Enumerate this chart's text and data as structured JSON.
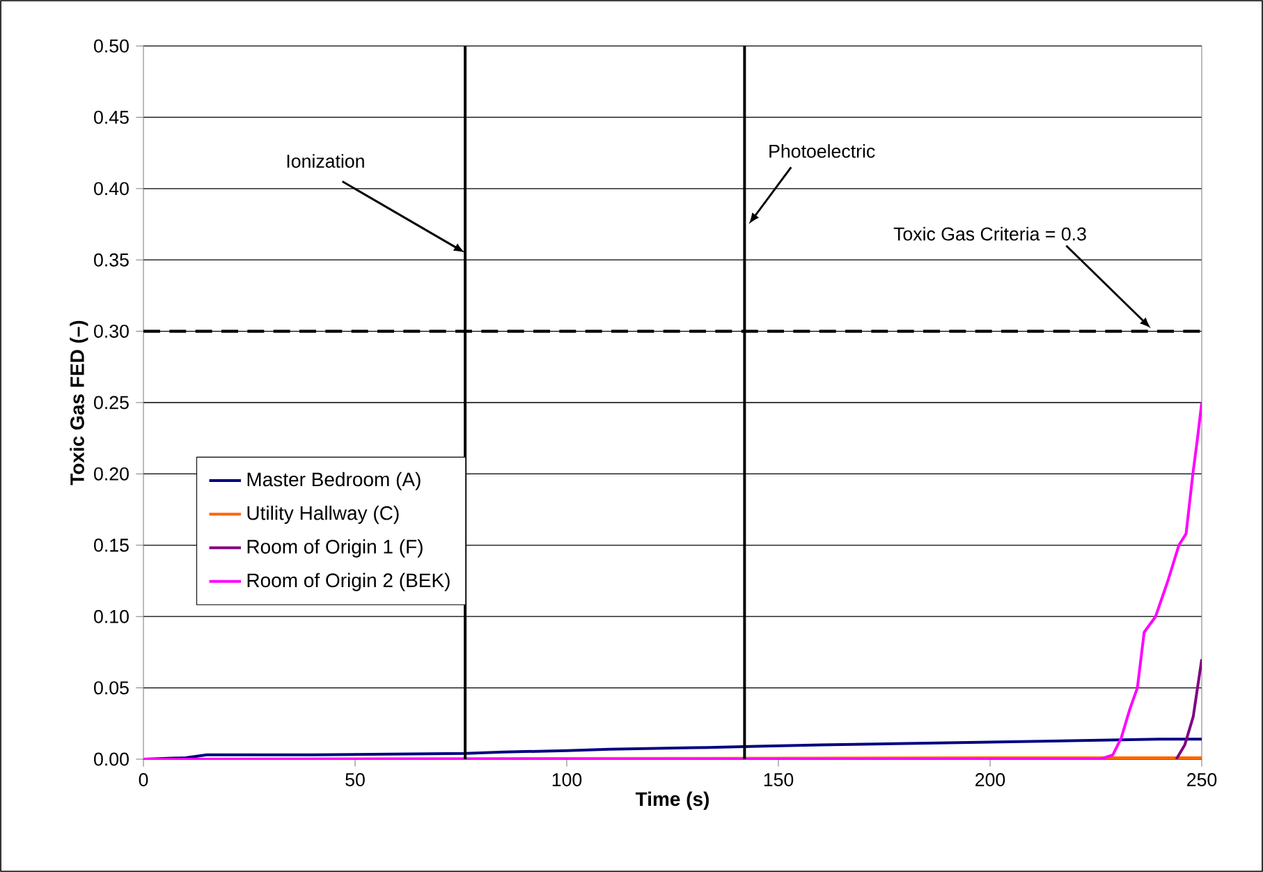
{
  "chart_data": {
    "type": "line",
    "xlabel": "Time (s)",
    "ylabel": "Toxic Gas FED (–)",
    "xlim": [
      0,
      250
    ],
    "xticks": [
      0,
      50,
      100,
      150,
      200,
      250
    ],
    "ylim": [
      0,
      0.5
    ],
    "yticks": [
      {
        "value": 0,
        "label": "0.00"
      },
      {
        "value": 0.05,
        "label": "0.05"
      },
      {
        "value": 0.1,
        "label": "0.10"
      },
      {
        "value": 0.15,
        "label": "0.15"
      },
      {
        "value": 0.2,
        "label": "0.20"
      },
      {
        "value": 0.25,
        "label": "0.25"
      },
      {
        "value": 0.3,
        "label": "0.30"
      },
      {
        "value": 0.35,
        "label": "0.35"
      },
      {
        "value": 0.4,
        "label": "0.40"
      },
      {
        "value": 0.45,
        "label": "0.45"
      },
      {
        "value": 0.5,
        "label": "0.50"
      }
    ],
    "grid": "y",
    "legend": "left",
    "marker": "none",
    "line_style": "solid",
    "series": [
      {
        "name": "Master Bedroom (A)",
        "color": "#000080",
        "x": [
          0,
          10,
          15,
          40,
          76,
          85,
          100,
          110,
          130,
          145,
          160,
          180,
          200,
          220,
          240,
          250
        ],
        "values": [
          0,
          0.001,
          0.003,
          0.003,
          0.004,
          0.005,
          0.006,
          0.007,
          0.008,
          0.009,
          0.01,
          0.011,
          0.012,
          0.013,
          0.014,
          0.014
        ]
      },
      {
        "name": "Utility Hallway (C)",
        "color": "#ff6600",
        "x": [
          0,
          200,
          220,
          250
        ],
        "values": [
          0,
          0.001,
          0.001,
          0.001
        ]
      },
      {
        "name": "Room of Origin 1 (F)",
        "color": "#800080",
        "x": [
          244,
          246,
          248,
          250
        ],
        "values": [
          0,
          0.01,
          0.03,
          0.07
        ]
      },
      {
        "name": "Room of Origin 2 (BEK)",
        "color": "#ff00ff",
        "x": [
          0,
          226,
          229,
          231,
          233,
          234.8,
          236.4,
          239.1,
          242,
          244.6,
          246.3,
          247.9,
          249,
          250
        ],
        "values": [
          0,
          0,
          0.003,
          0.015,
          0.035,
          0.05,
          0.089,
          0.1,
          0.125,
          0.15,
          0.158,
          0.2,
          0.225,
          0.25
        ]
      }
    ],
    "ref_lines": [
      {
        "axis": "x",
        "value": 76,
        "label": "Ionization",
        "color": "#000000",
        "line_style": "solid"
      },
      {
        "axis": "x",
        "value": 142,
        "label": "Photoelectric",
        "color": "#000000",
        "line_style": "solid"
      },
      {
        "axis": "y",
        "value": 0.3,
        "label": "Toxic Gas Criteria = 0.3",
        "color": "#000000",
        "line_style": "dashed"
      }
    ]
  }
}
